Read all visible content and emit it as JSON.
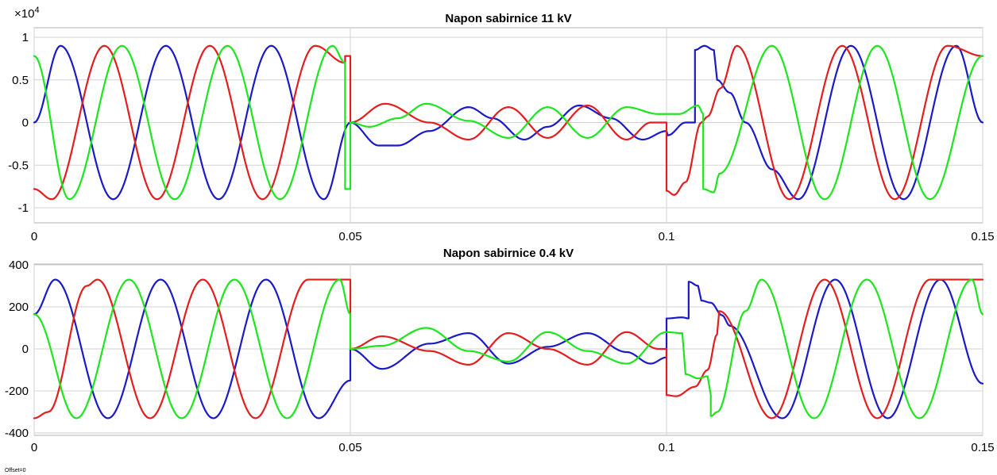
{
  "offset_label": "Offset=0",
  "colors": {
    "phase_a": "#e41e1e",
    "phase_b": "#1a1ac8",
    "phase_c": "#1ee61e",
    "grid": "#d2d2d2"
  },
  "chart_data": [
    {
      "type": "line",
      "title": "Napon sabirnice 11 kV",
      "xlabel": "",
      "ylabel": "",
      "exponent_label": "×10",
      "exponent_power": "4",
      "xlim": [
        0,
        0.15
      ],
      "ylim": [
        -1.2,
        1.1
      ],
      "grid": true,
      "x_ticks": [
        0,
        0.05,
        0.1,
        0.15
      ],
      "x_tick_labels": [
        "0",
        "0.05",
        "0.1",
        "0.15"
      ],
      "y_ticks": [
        1,
        0.5,
        0,
        -0.5,
        -1
      ],
      "y_tick_labels": [
        "1",
        "0.5",
        "0",
        "-0.5",
        "-1"
      ],
      "series": [
        {
          "color": "#1a1ac8",
          "points": [
            [
              0,
              0
            ],
            [
              0.00417,
              0.9
            ],
            [
              0.0125,
              -0.9
            ],
            [
              0.02083,
              0.9
            ],
            [
              0.02917,
              -0.9
            ],
            [
              0.0375,
              0.9
            ],
            [
              0.04583,
              -0.9
            ],
            [
              0.05,
              0
            ],
            [
              0.0545,
              -0.27
            ],
            [
              0.0575,
              -0.27
            ],
            [
              0.0625,
              -0.1
            ],
            [
              0.0687,
              0.18
            ],
            [
              0.0725,
              0.05
            ],
            [
              0.0775,
              -0.2
            ],
            [
              0.0812,
              -0.05
            ],
            [
              0.0862,
              0.2
            ],
            [
              0.0912,
              0.05
            ],
            [
              0.0962,
              -0.2
            ],
            [
              0.1,
              -0.1
            ],
            [
              0.1002,
              -0.15
            ],
            [
              0.103,
              0
            ],
            [
              0.1045,
              0
            ],
            [
              0.1045,
              0.85
            ],
            [
              0.106,
              0.9
            ],
            [
              0.1075,
              0.85
            ],
            [
              0.108,
              0.5
            ],
            [
              0.11,
              0.35
            ],
            [
              0.1125,
              0
            ],
            [
              0.1167,
              -0.55
            ],
            [
              0.12083,
              -0.9
            ],
            [
              0.12917,
              0.9
            ],
            [
              0.1375,
              -0.9
            ],
            [
              0.14583,
              0.9
            ],
            [
              0.15,
              0
            ]
          ]
        },
        {
          "color": "#e41e1e",
          "points": [
            [
              0,
              -0.78
            ],
            [
              0.00278,
              -0.9
            ],
            [
              0.01111,
              0.9
            ],
            [
              0.01944,
              -0.9
            ],
            [
              0.02778,
              0.9
            ],
            [
              0.03611,
              -0.9
            ],
            [
              0.04444,
              0.9
            ],
            [
              0.04917,
              0.7
            ],
            [
              0.04917,
              0.78
            ],
            [
              0.05,
              0.78
            ],
            [
              0.05,
              0
            ],
            [
              0.0555,
              0.22
            ],
            [
              0.0625,
              0
            ],
            [
              0.0687,
              -0.2
            ],
            [
              0.075,
              0.18
            ],
            [
              0.0812,
              -0.18
            ],
            [
              0.0875,
              0.2
            ],
            [
              0.0937,
              -0.2
            ],
            [
              0.0975,
              0
            ],
            [
              0.1,
              0
            ],
            [
              0.1,
              -0.8
            ],
            [
              0.1012,
              -0.85
            ],
            [
              0.103,
              -0.7
            ],
            [
              0.1055,
              0
            ],
            [
              0.1065,
              0.07
            ],
            [
              0.1085,
              0.4
            ],
            [
              0.11111,
              0.9
            ],
            [
              0.11944,
              -0.9
            ],
            [
              0.12778,
              0.9
            ],
            [
              0.13611,
              -0.9
            ],
            [
              0.14444,
              0.9
            ],
            [
              0.15,
              0.78
            ]
          ]
        },
        {
          "color": "#1ee61e",
          "points": [
            [
              0,
              0.78
            ],
            [
              0.00556,
              -0.9
            ],
            [
              0.01389,
              0.9
            ],
            [
              0.02222,
              -0.9
            ],
            [
              0.03056,
              0.9
            ],
            [
              0.03889,
              -0.9
            ],
            [
              0.04722,
              0.9
            ],
            [
              0.04917,
              0.7
            ],
            [
              0.04917,
              -0.78
            ],
            [
              0.05,
              -0.78
            ],
            [
              0.05,
              0
            ],
            [
              0.053,
              -0.05
            ],
            [
              0.0575,
              0.05
            ],
            [
              0.062,
              0.22
            ],
            [
              0.0687,
              0.02
            ],
            [
              0.075,
              -0.18
            ],
            [
              0.0812,
              0.18
            ],
            [
              0.0875,
              -0.18
            ],
            [
              0.0937,
              0.18
            ],
            [
              0.0987,
              0.1
            ],
            [
              0.102,
              0.1
            ],
            [
              0.105,
              0.2
            ],
            [
              0.1058,
              0.1
            ],
            [
              0.1058,
              -0.78
            ],
            [
              0.1075,
              -0.82
            ],
            [
              0.10833,
              -0.6
            ],
            [
              0.11667,
              0.9
            ],
            [
              0.125,
              -0.9
            ],
            [
              0.13333,
              0.9
            ],
            [
              0.14167,
              -0.9
            ],
            [
              0.15,
              0.78
            ]
          ]
        }
      ]
    },
    {
      "type": "line",
      "title": "Napon sabirnice 0.4 kV",
      "xlabel": "",
      "ylabel": "",
      "xlim": [
        0,
        0.15
      ],
      "ylim": [
        -400,
        400
      ],
      "grid": true,
      "x_ticks": [
        0,
        0.05,
        0.1,
        0.15
      ],
      "x_tick_labels": [
        "0",
        "0.05",
        "0.1",
        "0.15"
      ],
      "y_ticks": [
        400,
        200,
        0,
        -200,
        -400
      ],
      "y_tick_labels": [
        "400",
        "200",
        "0",
        "-200",
        "-400"
      ],
      "series": [
        {
          "color": "#1a1ac8",
          "points": [
            [
              0,
              165
            ],
            [
              0.00333,
              330
            ],
            [
              0.01167,
              -330
            ],
            [
              0.02,
              330
            ],
            [
              0.02833,
              -330
            ],
            [
              0.03667,
              330
            ],
            [
              0.045,
              -330
            ],
            [
              0.05,
              -150
            ],
            [
              0.05,
              0
            ],
            [
              0.055,
              -95
            ],
            [
              0.0625,
              25
            ],
            [
              0.0687,
              75
            ],
            [
              0.075,
              -70
            ],
            [
              0.0812,
              10
            ],
            [
              0.0875,
              75
            ],
            [
              0.0937,
              -15
            ],
            [
              0.0975,
              -70
            ],
            [
              0.1,
              -40
            ],
            [
              0.1,
              145
            ],
            [
              0.1025,
              150
            ],
            [
              0.1035,
              145
            ],
            [
              0.1035,
              320
            ],
            [
              0.105,
              300
            ],
            [
              0.1055,
              230
            ],
            [
              0.107,
              220
            ],
            [
              0.1088,
              160
            ],
            [
              0.11,
              110
            ],
            [
              0.11833,
              -330
            ],
            [
              0.12667,
              330
            ],
            [
              0.135,
              -330
            ],
            [
              0.14333,
              330
            ],
            [
              0.15,
              -165
            ]
          ]
        },
        {
          "color": "#e41e1e",
          "points": [
            [
              0,
              -330
            ],
            [
              0.00222,
              -300
            ],
            [
              0.00833,
              300
            ],
            [
              0.01,
              330
            ],
            [
              0.01833,
              -330
            ],
            [
              0.02667,
              330
            ],
            [
              0.035,
              -330
            ],
            [
              0.04333,
              330
            ],
            [
              0.04917,
              330
            ],
            [
              0.05,
              330
            ],
            [
              0.05,
              0
            ],
            [
              0.055,
              60
            ],
            [
              0.0625,
              -10
            ],
            [
              0.0687,
              -75
            ],
            [
              0.075,
              75
            ],
            [
              0.0812,
              0
            ],
            [
              0.0875,
              -75
            ],
            [
              0.0937,
              80
            ],
            [
              0.0987,
              0
            ],
            [
              0.1,
              0
            ],
            [
              0.1,
              -220
            ],
            [
              0.1015,
              -225
            ],
            [
              0.1045,
              -180
            ],
            [
              0.1065,
              -100
            ],
            [
              0.108,
              70
            ],
            [
              0.10833,
              180
            ],
            [
              0.11667,
              -330
            ],
            [
              0.125,
              330
            ],
            [
              0.13333,
              -330
            ],
            [
              0.14167,
              330
            ],
            [
              0.15,
              330
            ]
          ]
        },
        {
          "color": "#1ee61e",
          "points": [
            [
              0,
              165
            ],
            [
              0.00667,
              -330
            ],
            [
              0.015,
              330
            ],
            [
              0.02333,
              -330
            ],
            [
              0.03167,
              330
            ],
            [
              0.04,
              -330
            ],
            [
              0.04833,
              330
            ],
            [
              0.05,
              165
            ],
            [
              0.05,
              0
            ],
            [
              0.055,
              15
            ],
            [
              0.062,
              100
            ],
            [
              0.0687,
              -10
            ],
            [
              0.075,
              -60
            ],
            [
              0.0812,
              80
            ],
            [
              0.0875,
              -10
            ],
            [
              0.0937,
              -70
            ],
            [
              0.1,
              80
            ],
            [
              0.1025,
              75
            ],
            [
              0.103,
              -120
            ],
            [
              0.105,
              -140
            ],
            [
              0.1065,
              -130
            ],
            [
              0.107,
              -220
            ],
            [
              0.107,
              -320
            ],
            [
              0.108,
              -300
            ],
            [
              0.1125,
              180
            ],
            [
              0.115,
              330
            ],
            [
              0.12333,
              -330
            ],
            [
              0.13167,
              330
            ],
            [
              0.14,
              -330
            ],
            [
              0.1483,
              330
            ],
            [
              0.15,
              165
            ]
          ]
        }
      ]
    }
  ]
}
